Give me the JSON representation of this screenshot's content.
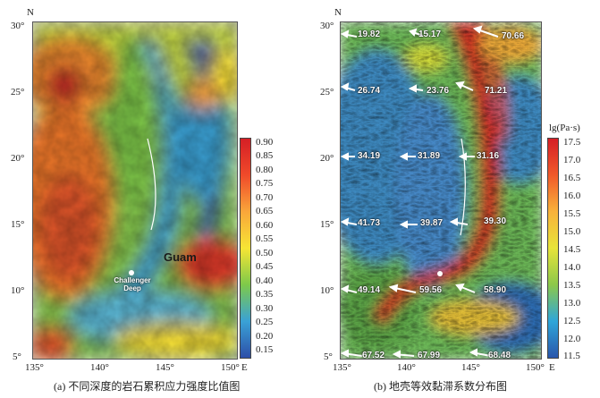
{
  "panel_a": {
    "caption": "(a) 不同深度的岩石累积应力强度比值图",
    "north": "N",
    "east": "E",
    "lat_ticks": [
      "30°",
      "25°",
      "20°",
      "15°",
      "10°",
      "5°"
    ],
    "lon_ticks": [
      "135°",
      "140°",
      "145°",
      "150°"
    ],
    "place_guam": "Guam",
    "place_challenger": "Challenger Deep",
    "colorbar_labels": [
      "0.90",
      "0.85",
      "0.80",
      "0.75",
      "0.70",
      "0.65",
      "0.60",
      "0.55",
      "0.50",
      "0.45",
      "0.40",
      "0.35",
      "0.30",
      "0.25",
      "0.20",
      "0.15"
    ],
    "colorbar_colors": [
      "#d51f26",
      "#f04a2a",
      "#f9a63a",
      "#f6e535",
      "#7ec94a",
      "#3aa2d6",
      "#2d4fa8"
    ]
  },
  "panel_b": {
    "caption": "(b) 地壳等效黏滞系数分布图",
    "north": "N",
    "east": "E",
    "lat_ticks": [
      "30°",
      "25°",
      "20°",
      "15°",
      "10°",
      "5°"
    ],
    "lon_ticks": [
      "135°",
      "140°",
      "145°",
      "150°"
    ],
    "colorbar_title": "lg(Pa·s)",
    "colorbar_labels": [
      "17.5",
      "17.0",
      "16.5",
      "16.0",
      "15.5",
      "15.0",
      "14.5",
      "14.0",
      "13.5",
      "13.0",
      "12.5",
      "12.0",
      "11.5"
    ],
    "colorbar_colors": [
      "#d51f26",
      "#f15a2a",
      "#f8b23b",
      "#e7e43a",
      "#8cc84a",
      "#2fa6d9",
      "#2a56ab"
    ],
    "velocity_labels": [
      "19.82",
      "15.17",
      "70.66",
      "26.74",
      "23.76",
      "71.21",
      "34.19",
      "31.89",
      "31.16",
      "41.73",
      "39.87",
      "39.30",
      "49.14",
      "59.56",
      "58.90",
      "67.52",
      "67.99",
      "68.48"
    ]
  }
}
